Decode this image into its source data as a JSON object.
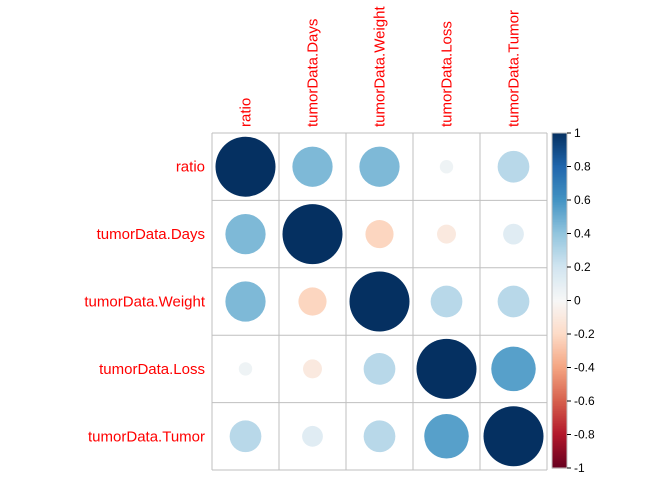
{
  "chart_data": {
    "type": "heatmap",
    "style": "circle correlation matrix",
    "variables": [
      "ratio",
      "tumorData.Days",
      "tumorData.Weight",
      "tumorData.Loss",
      "tumorData.Tumor"
    ],
    "matrix": [
      [
        1.0,
        0.45,
        0.45,
        0.05,
        0.28
      ],
      [
        0.45,
        1.0,
        -0.22,
        -0.1,
        0.12
      ],
      [
        0.45,
        -0.22,
        1.0,
        0.28,
        0.28
      ],
      [
        0.05,
        -0.1,
        0.28,
        1.0,
        0.55
      ],
      [
        0.28,
        0.12,
        0.28,
        0.55,
        1.0
      ]
    ],
    "colorbar": {
      "range": [
        -1,
        1
      ],
      "ticks": [
        "1",
        "0.8",
        "0.6",
        "0.4",
        "0.2",
        "0",
        "-0.2",
        "-0.4",
        "-0.6",
        "-0.8",
        "-1"
      ],
      "colors": [
        "#053061",
        "#2166ac",
        "#4393c3",
        "#92c5de",
        "#d1e5f0",
        "#f7f7f7",
        "#fddbc7",
        "#f4a582",
        "#d6604d",
        "#b2182b",
        "#67001f"
      ]
    },
    "label_color": "#ff0000",
    "grid_color": "#bfbfbf"
  }
}
